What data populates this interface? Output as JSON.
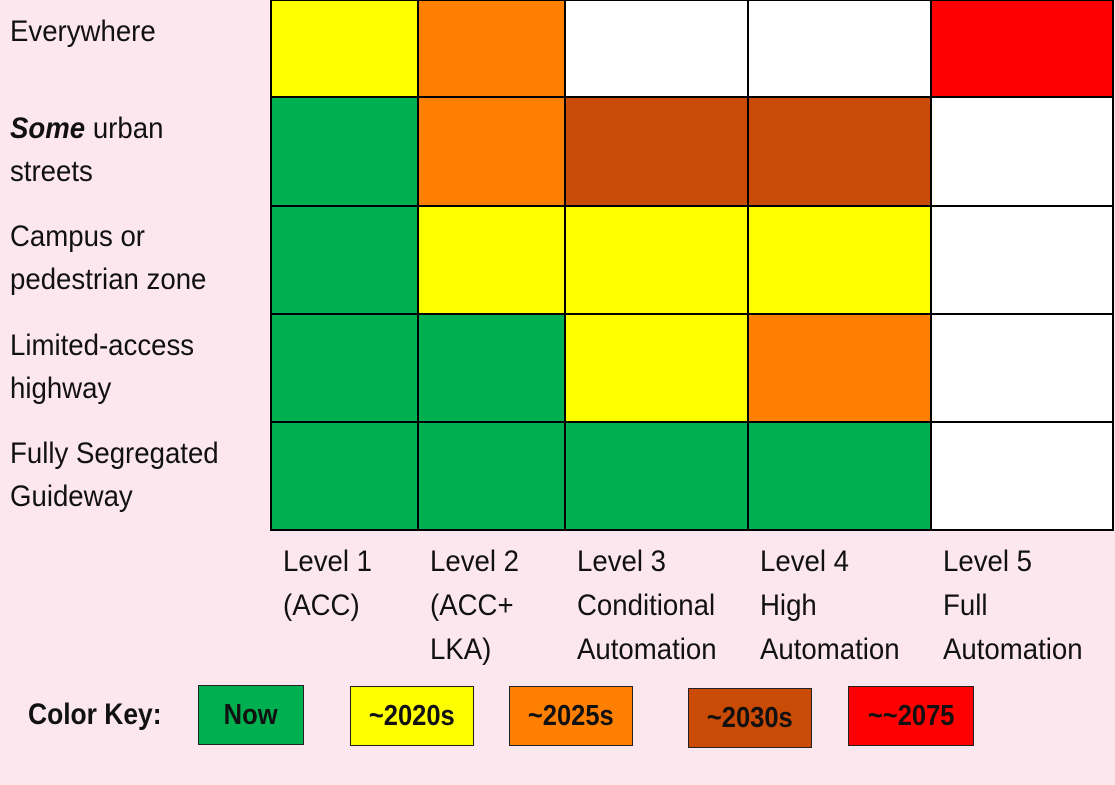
{
  "chart_data": {
    "type": "heatmap",
    "rows": [
      {
        "label_em": "",
        "label_rest": "Everywhere",
        "lines": [
          "Everywhere"
        ]
      },
      {
        "label_em": "Some",
        "label_rest": " urban",
        "lines": [
          "Some urban",
          "streets"
        ],
        "line2": "streets"
      },
      {
        "label_em": "",
        "label_rest": "",
        "lines": [
          "Campus or",
          "pedestrian zone"
        ]
      },
      {
        "label_em": "",
        "label_rest": "",
        "lines": [
          "Limited-access",
          "highway"
        ]
      },
      {
        "label_em": "",
        "label_rest": "",
        "lines": [
          "Fully Segregated",
          "Guideway"
        ]
      }
    ],
    "columns": [
      {
        "lines": [
          "Level 1",
          "(ACC)"
        ]
      },
      {
        "lines": [
          "Level 2",
          "(ACC+",
          "LKA)"
        ]
      },
      {
        "lines": [
          "Level 3",
          "Conditional",
          "Automation"
        ]
      },
      {
        "lines": [
          "Level 4",
          "High",
          "Automation"
        ]
      },
      {
        "lines": [
          "Level 5",
          "Full",
          "Automation"
        ]
      }
    ],
    "cells": [
      [
        "~2020s",
        "~2025s",
        "none",
        "none",
        "~~2075"
      ],
      [
        "Now",
        "~2025s",
        "~2030s",
        "~2030s",
        "none"
      ],
      [
        "Now",
        "~2020s",
        "~2020s",
        "~2020s",
        "none"
      ],
      [
        "Now",
        "Now",
        "~2020s",
        "~2025s",
        "none"
      ],
      [
        "Now",
        "Now",
        "Now",
        "Now",
        "none"
      ]
    ],
    "color_key": {
      "title": "Color Key:",
      "entries": [
        {
          "label": "Now",
          "color": "#00b050"
        },
        {
          "label": "~2020s",
          "color": "#ffff00"
        },
        {
          "label": "~2025s",
          "color": "#ff8000"
        },
        {
          "label": "~2030s",
          "color": "#c94b06"
        },
        {
          "label": "~~2075",
          "color": "#ff0000"
        }
      ],
      "none_color": "#ffffff"
    }
  }
}
